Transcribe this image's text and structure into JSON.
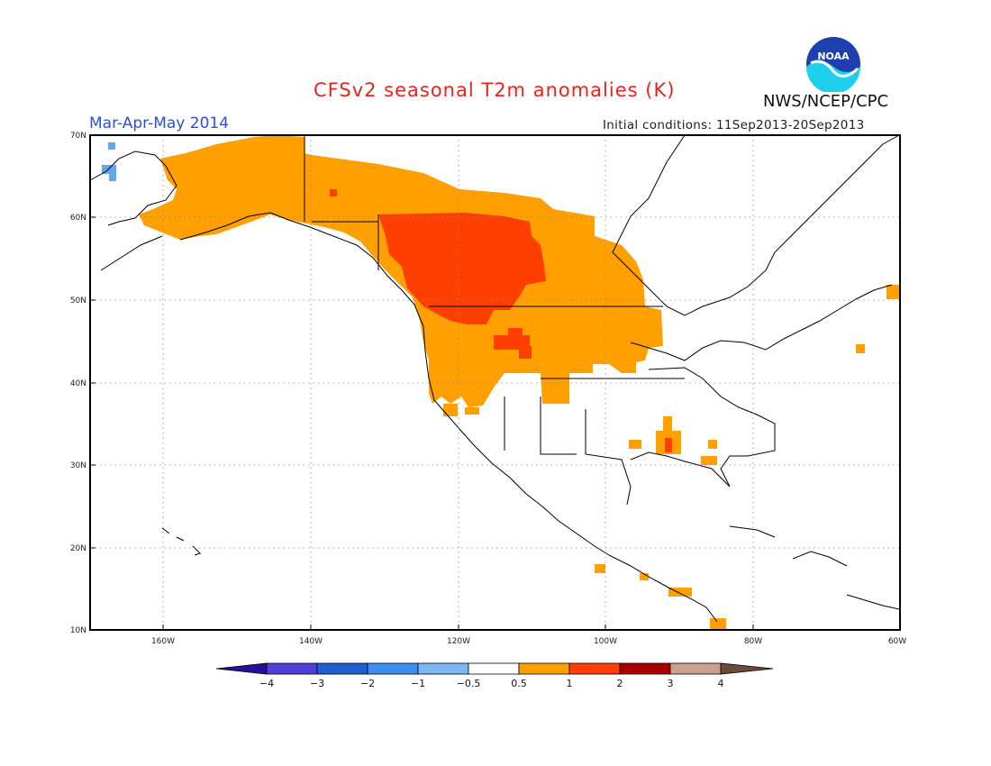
{
  "title": "CFSv2 seasonal T2m anomalies (K)",
  "period": "Mar-Apr-May 2014",
  "initial_conditions": "Initial conditions: 11Sep2013-20Sep2013",
  "org": "NWS/NCEP/CPC",
  "logo_text": "NOAA",
  "map": {
    "lat_labels": [
      "70N",
      "60N",
      "50N",
      "40N",
      "30N",
      "20N",
      "10N"
    ],
    "lon_labels": [
      "160W",
      "140W",
      "120W",
      "100W",
      "80W",
      "60W"
    ]
  },
  "colorbar": {
    "labels": [
      "−4",
      "−3",
      "−2",
      "−1",
      "−0.5",
      "0.5",
      "1",
      "2",
      "3",
      "4"
    ],
    "colors": [
      "#2a0f9c",
      "#4f3fd4",
      "#1f5fcf",
      "#3f8ff0",
      "#7bb8f2",
      "#ffffff",
      "#ff9f00",
      "#ff3f00",
      "#a80000",
      "#caa08e",
      "#6f4a3a"
    ]
  },
  "colors": {
    "warm1": "#ff9f00",
    "warm2": "#ff3f00",
    "cool1": "#5fa8ec"
  }
}
